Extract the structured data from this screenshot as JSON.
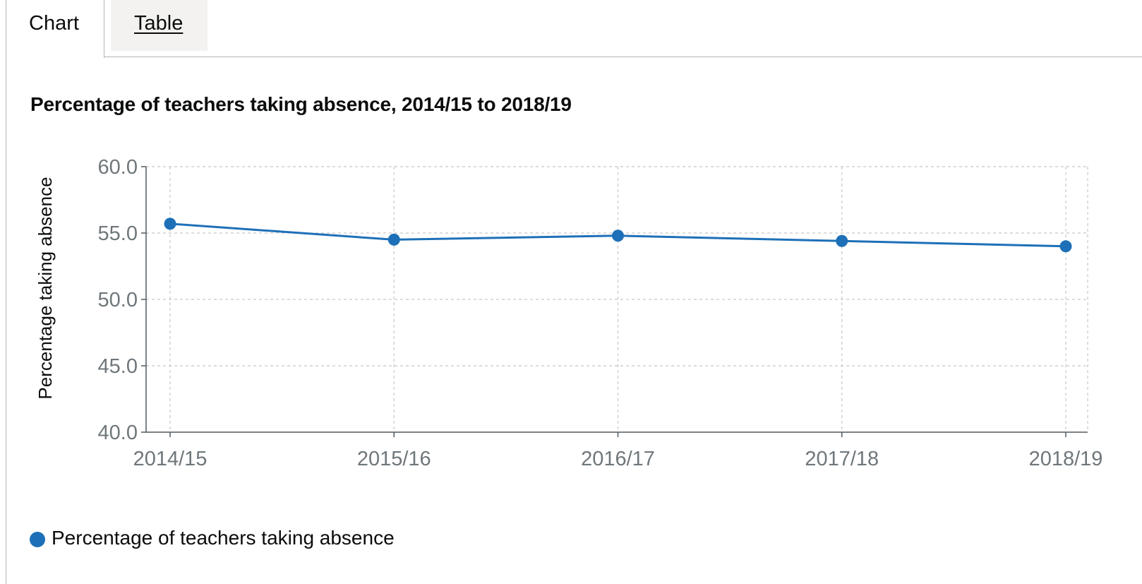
{
  "tabs": [
    {
      "label": "Chart",
      "selected": true
    },
    {
      "label": "Table",
      "selected": false
    }
  ],
  "chart_data": {
    "type": "line",
    "title": "Percentage of teachers taking absence, 2014/15 to 2018/19",
    "xlabel": "",
    "ylabel": "Percentage taking absence",
    "categories": [
      "2014/15",
      "2015/16",
      "2016/17",
      "2017/18",
      "2018/19"
    ],
    "series": [
      {
        "name": "Percentage of teachers taking absence",
        "color": "#1d70b8",
        "values": [
          55.7,
          54.5,
          54.8,
          54.4,
          54.0
        ]
      }
    ],
    "ylim": [
      40,
      60
    ],
    "yticks": [
      "40.0",
      "45.0",
      "50.0",
      "55.0",
      "60.0"
    ],
    "grid": true,
    "legend_position": "bottom-left"
  }
}
